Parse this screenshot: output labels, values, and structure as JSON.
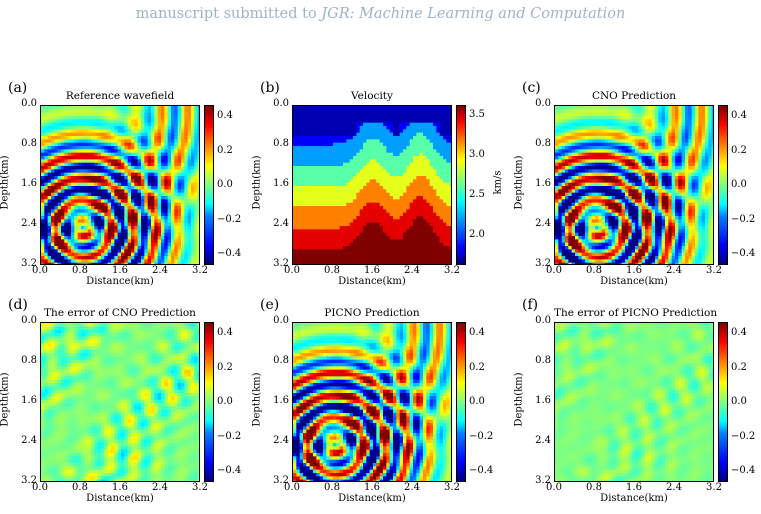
{
  "header": {
    "prefix": "manuscript submitted to",
    "journal": "JGR: Machine Learning and Computation"
  },
  "panels": [
    {
      "letter": "(a)",
      "title": "Reference wavefield",
      "kind": "wave",
      "strength": 1.0,
      "cbar_ticks": [
        "0.4",
        "0.2",
        "0.0",
        "−0.2",
        "−0.4"
      ]
    },
    {
      "letter": "(b)",
      "title": "Velocity",
      "kind": "velocity",
      "cbar_ticks": [
        "3.5",
        "3.0",
        "2.5",
        "2.0"
      ],
      "cbar_unit": "km/s"
    },
    {
      "letter": "(c)",
      "title": "CNO Prediction",
      "kind": "wave",
      "strength": 1.0,
      "cbar_ticks": [
        "0.4",
        "0.2",
        "0.0",
        "−0.2",
        "−0.4"
      ]
    },
    {
      "letter": "(d)",
      "title": "The error of CNO Prediction",
      "kind": "error",
      "strength": 0.35,
      "cbar_ticks": [
        "0.4",
        "0.2",
        "0.0",
        "−0.2",
        "−0.4"
      ]
    },
    {
      "letter": "(e)",
      "title": "PICNO Prediction",
      "kind": "wave",
      "strength": 1.0,
      "cbar_ticks": [
        "0.4",
        "0.2",
        "0.0",
        "−0.2",
        "−0.4"
      ]
    },
    {
      "letter": "(f)",
      "title": "The error of PICNO Prediction",
      "kind": "error",
      "strength": 0.18,
      "cbar_ticks": [
        "0.4",
        "0.2",
        "0.0",
        "−0.2",
        "−0.4"
      ]
    }
  ],
  "axes": {
    "xlabel": "Distance(km)",
    "ylabel": "Depth(km)",
    "xticks": [
      "0.0",
      "0.8",
      "1.6",
      "2.4",
      "3.2"
    ],
    "yticks": [
      "0.0",
      "0.8",
      "1.6",
      "2.4",
      "3.2"
    ]
  },
  "chart_data": [
    {
      "type": "heatmap",
      "title": "Reference wavefield",
      "xlabel": "Distance(km)",
      "ylabel": "Depth(km)",
      "xlim": [
        0,
        3.2
      ],
      "ylim": [
        3.2,
        0
      ],
      "clim": [
        -0.5,
        0.5
      ]
    },
    {
      "type": "heatmap",
      "title": "Velocity",
      "xlabel": "Distance(km)",
      "ylabel": "Depth(km)",
      "xlim": [
        0,
        3.2
      ],
      "ylim": [
        3.2,
        0
      ],
      "clim": [
        1.6,
        3.7
      ],
      "colorbar_label": "km/s"
    },
    {
      "type": "heatmap",
      "title": "CNO Prediction",
      "xlabel": "Distance(km)",
      "ylabel": "Depth(km)",
      "xlim": [
        0,
        3.2
      ],
      "ylim": [
        3.2,
        0
      ],
      "clim": [
        -0.5,
        0.5
      ]
    },
    {
      "type": "heatmap",
      "title": "The error of CNO Prediction",
      "xlabel": "Distance(km)",
      "ylabel": "Depth(km)",
      "xlim": [
        0,
        3.2
      ],
      "ylim": [
        3.2,
        0
      ],
      "clim": [
        -0.5,
        0.5
      ]
    },
    {
      "type": "heatmap",
      "title": "PICNO Prediction",
      "xlabel": "Distance(km)",
      "ylabel": "Depth(km)",
      "xlim": [
        0,
        3.2
      ],
      "ylim": [
        3.2,
        0
      ],
      "clim": [
        -0.5,
        0.5
      ]
    },
    {
      "type": "heatmap",
      "title": "The error of PICNO Prediction",
      "xlabel": "Distance(km)",
      "ylabel": "Depth(km)",
      "xlim": [
        0,
        3.2
      ],
      "ylim": [
        3.2,
        0
      ],
      "clim": [
        -0.5,
        0.5
      ]
    }
  ]
}
